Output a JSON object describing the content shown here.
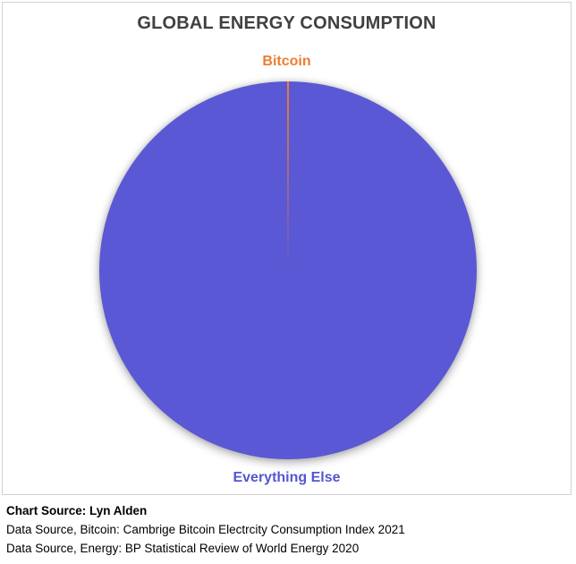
{
  "chart_data": {
    "type": "pie",
    "title": "GLOBAL ENERGY CONSUMPTION",
    "labels": [
      "Bitcoin",
      "Everything Else"
    ],
    "values": [
      0.15,
      99.85
    ],
    "colors": [
      "#ED7D31",
      "#5A58D4"
    ],
    "label_colors": [
      "#ED7D31",
      "#5456CE"
    ],
    "start_angle_deg": -90,
    "legend_position": "data-labels-outside",
    "notes": "Bitcoin slice is a hairline sliver at the 12 o'clock position"
  },
  "footer": {
    "chart_source": "Chart Source: Lyn Alden",
    "data_source_bitcoin": "Data Source, Bitcoin: Cambrige Bitcoin Electrcity Consumption Index 2021",
    "data_source_energy": "Data Source, Energy: BP Statistical Review of World Energy 2020"
  },
  "colors": {
    "title_text": "#404040",
    "frame_border": "#D2D2D2",
    "footer_text": "#000000",
    "background": "#FFFFFF"
  }
}
